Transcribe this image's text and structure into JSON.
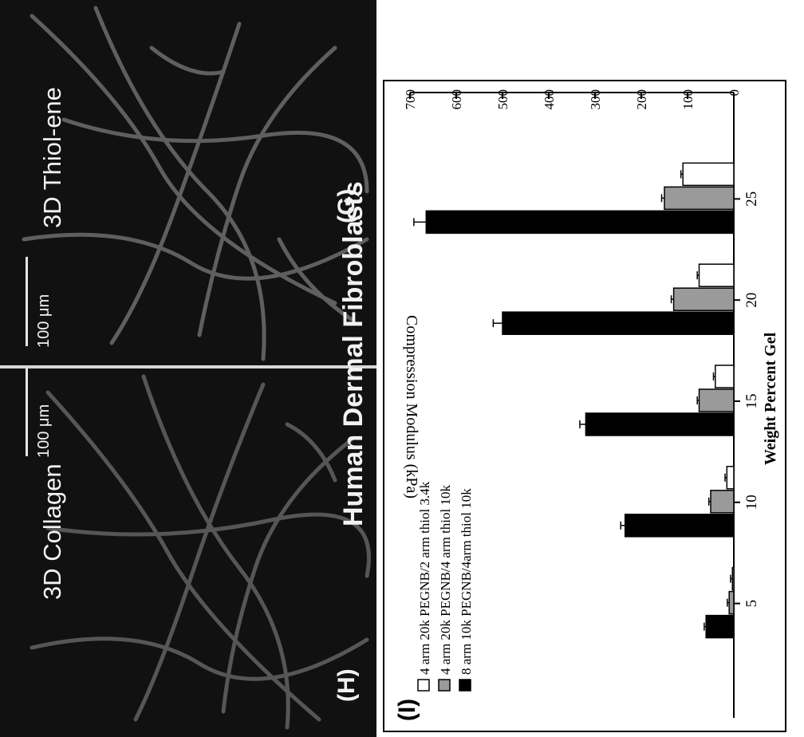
{
  "panels": {
    "g": {
      "label": "(G)",
      "title": "3D Thiol-ene",
      "scale": "100 μm"
    },
    "h": {
      "label": "(H)",
      "title": "3D Collagen",
      "scale": "100 μm"
    },
    "cell_type": "Human Dermal Fibroblasts"
  },
  "chart_label": "(I)",
  "chart_data": {
    "type": "bar",
    "title": "",
    "xlabel": "Weight Percent Gel",
    "ylabel": "Compression Modulus (kPa)",
    "categories": [
      "5",
      "10",
      "15",
      "20",
      "25"
    ],
    "ylim": [
      0,
      700
    ],
    "yticks": [
      "0",
      "100",
      "200",
      "300",
      "400",
      "500",
      "600",
      "700"
    ],
    "legend_position": "top-left",
    "series": [
      {
        "name": "4 arm 20k PEGNB/2 arm thiol 3.4k",
        "values": [
          3,
          15,
          40,
          75,
          110
        ],
        "color": "#ffffff"
      },
      {
        "name": "4 arm 20k PEGNB/4 arm thiol 10k",
        "values": [
          10,
          50,
          75,
          130,
          150
        ],
        "color": "#9a9a9a"
      },
      {
        "name": "8 arm 10k PEGNB/4arm thiol 10k",
        "values": [
          60,
          235,
          320,
          500,
          665
        ],
        "color": "#000000"
      }
    ]
  }
}
